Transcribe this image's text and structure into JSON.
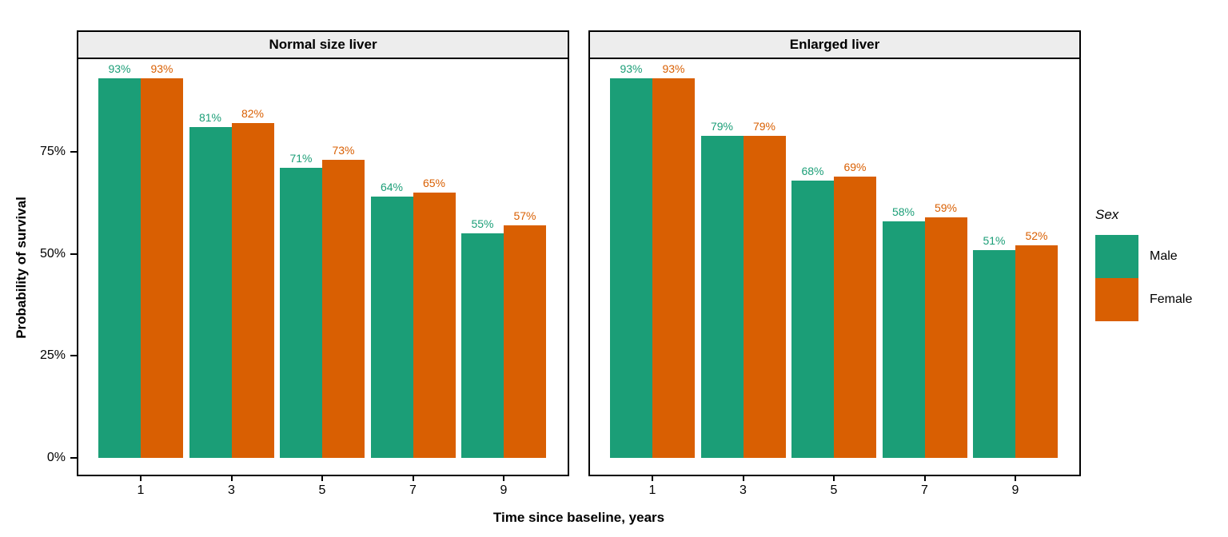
{
  "chart_data": {
    "type": "bar",
    "title": "",
    "xlabel": "Time since baseline, years",
    "ylabel": "Probability of survival",
    "categories": [
      "1",
      "3",
      "5",
      "7",
      "9"
    ],
    "y_ticks": [
      {
        "label": "0%",
        "value": 0
      },
      {
        "label": "25%",
        "value": 25
      },
      {
        "label": "50%",
        "value": 50
      },
      {
        "label": "75%",
        "value": 75
      }
    ],
    "ylim": [
      0,
      100
    ],
    "grid": "off",
    "bar_label_format": "percent",
    "legend": {
      "title": "Sex",
      "position": "right",
      "entries": [
        {
          "label": "Male",
          "color": "#1B9E77"
        },
        {
          "label": "Female",
          "color": "#D95F02"
        }
      ]
    },
    "colors": {
      "male": "#1B9E77",
      "female": "#D95F02",
      "strip_bg": "#EDEDED",
      "panel_border": "#000000"
    },
    "facets": [
      {
        "title": "Normal size liver",
        "series": [
          {
            "name": "Male",
            "color": "#1B9E77",
            "values": [
              93,
              81,
              71,
              64,
              55
            ]
          },
          {
            "name": "Female",
            "color": "#D95F02",
            "values": [
              93,
              82,
              73,
              65,
              57
            ]
          }
        ]
      },
      {
        "title": "Enlarged liver",
        "series": [
          {
            "name": "Male",
            "color": "#1B9E77",
            "values": [
              93,
              79,
              68,
              58,
              51
            ]
          },
          {
            "name": "Female",
            "color": "#D95F02",
            "values": [
              93,
              79,
              69,
              59,
              52
            ]
          }
        ]
      }
    ]
  }
}
